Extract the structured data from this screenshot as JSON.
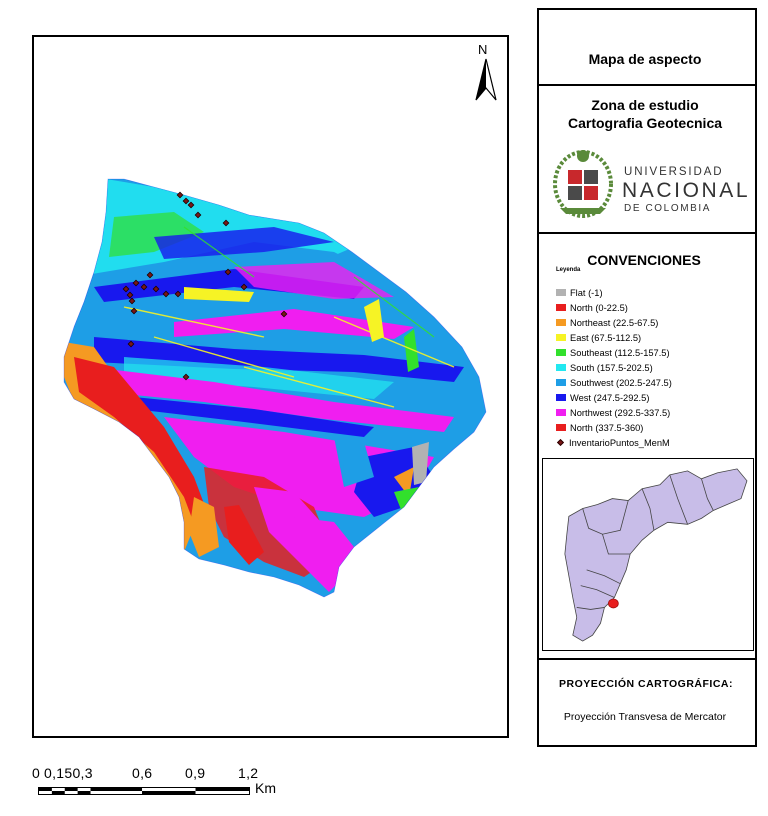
{
  "map": {
    "title": "Mapa de aspecto",
    "subtitle_line1": "Zona de estudio",
    "subtitle_line2": "Cartografia Geotecnica",
    "north_label": "N",
    "scale_ticks": [
      "0",
      "0,150,3",
      "0,6",
      "0,9",
      "1,2"
    ],
    "scale_unit": "Km"
  },
  "logo": {
    "line1": "UNIVERSIDAD",
    "line2": "NACIONAL",
    "line3": "DE COLOMBIA"
  },
  "legend": {
    "heading": "CONVENCIONES",
    "title": "Leyenda",
    "classes": [
      {
        "label": "Flat (-1)",
        "color": "#b2b2b2"
      },
      {
        "label": "North (0-22.5)",
        "color": "#e81e1e"
      },
      {
        "label": "Northeast (22.5-67.5)",
        "color": "#f59a22"
      },
      {
        "label": "East (67.5-112.5)",
        "color": "#f6f325"
      },
      {
        "label": "Southeast (112.5-157.5)",
        "color": "#32e02c"
      },
      {
        "label": "South (157.5-202.5)",
        "color": "#22e8f0"
      },
      {
        "label": "Southwest (202.5-247.5)",
        "color": "#1e9ee6"
      },
      {
        "label": "West (247.5-292.5)",
        "color": "#1818ee"
      },
      {
        "label": "Northwest (292.5-337.5)",
        "color": "#f01ef0"
      },
      {
        "label": "North (337.5-360)",
        "color": "#e81e1e"
      }
    ],
    "points_label": "InventarioPuntos_MenM",
    "points_color": "#7a1616"
  },
  "inset": {
    "fill_color": "#c8bde8",
    "highlight_color": "#e81e1e"
  },
  "projection": {
    "title": "PROYECCIÓN CARTOGRÁFICA:",
    "value": "Proyección Transvesa de Mercator"
  }
}
